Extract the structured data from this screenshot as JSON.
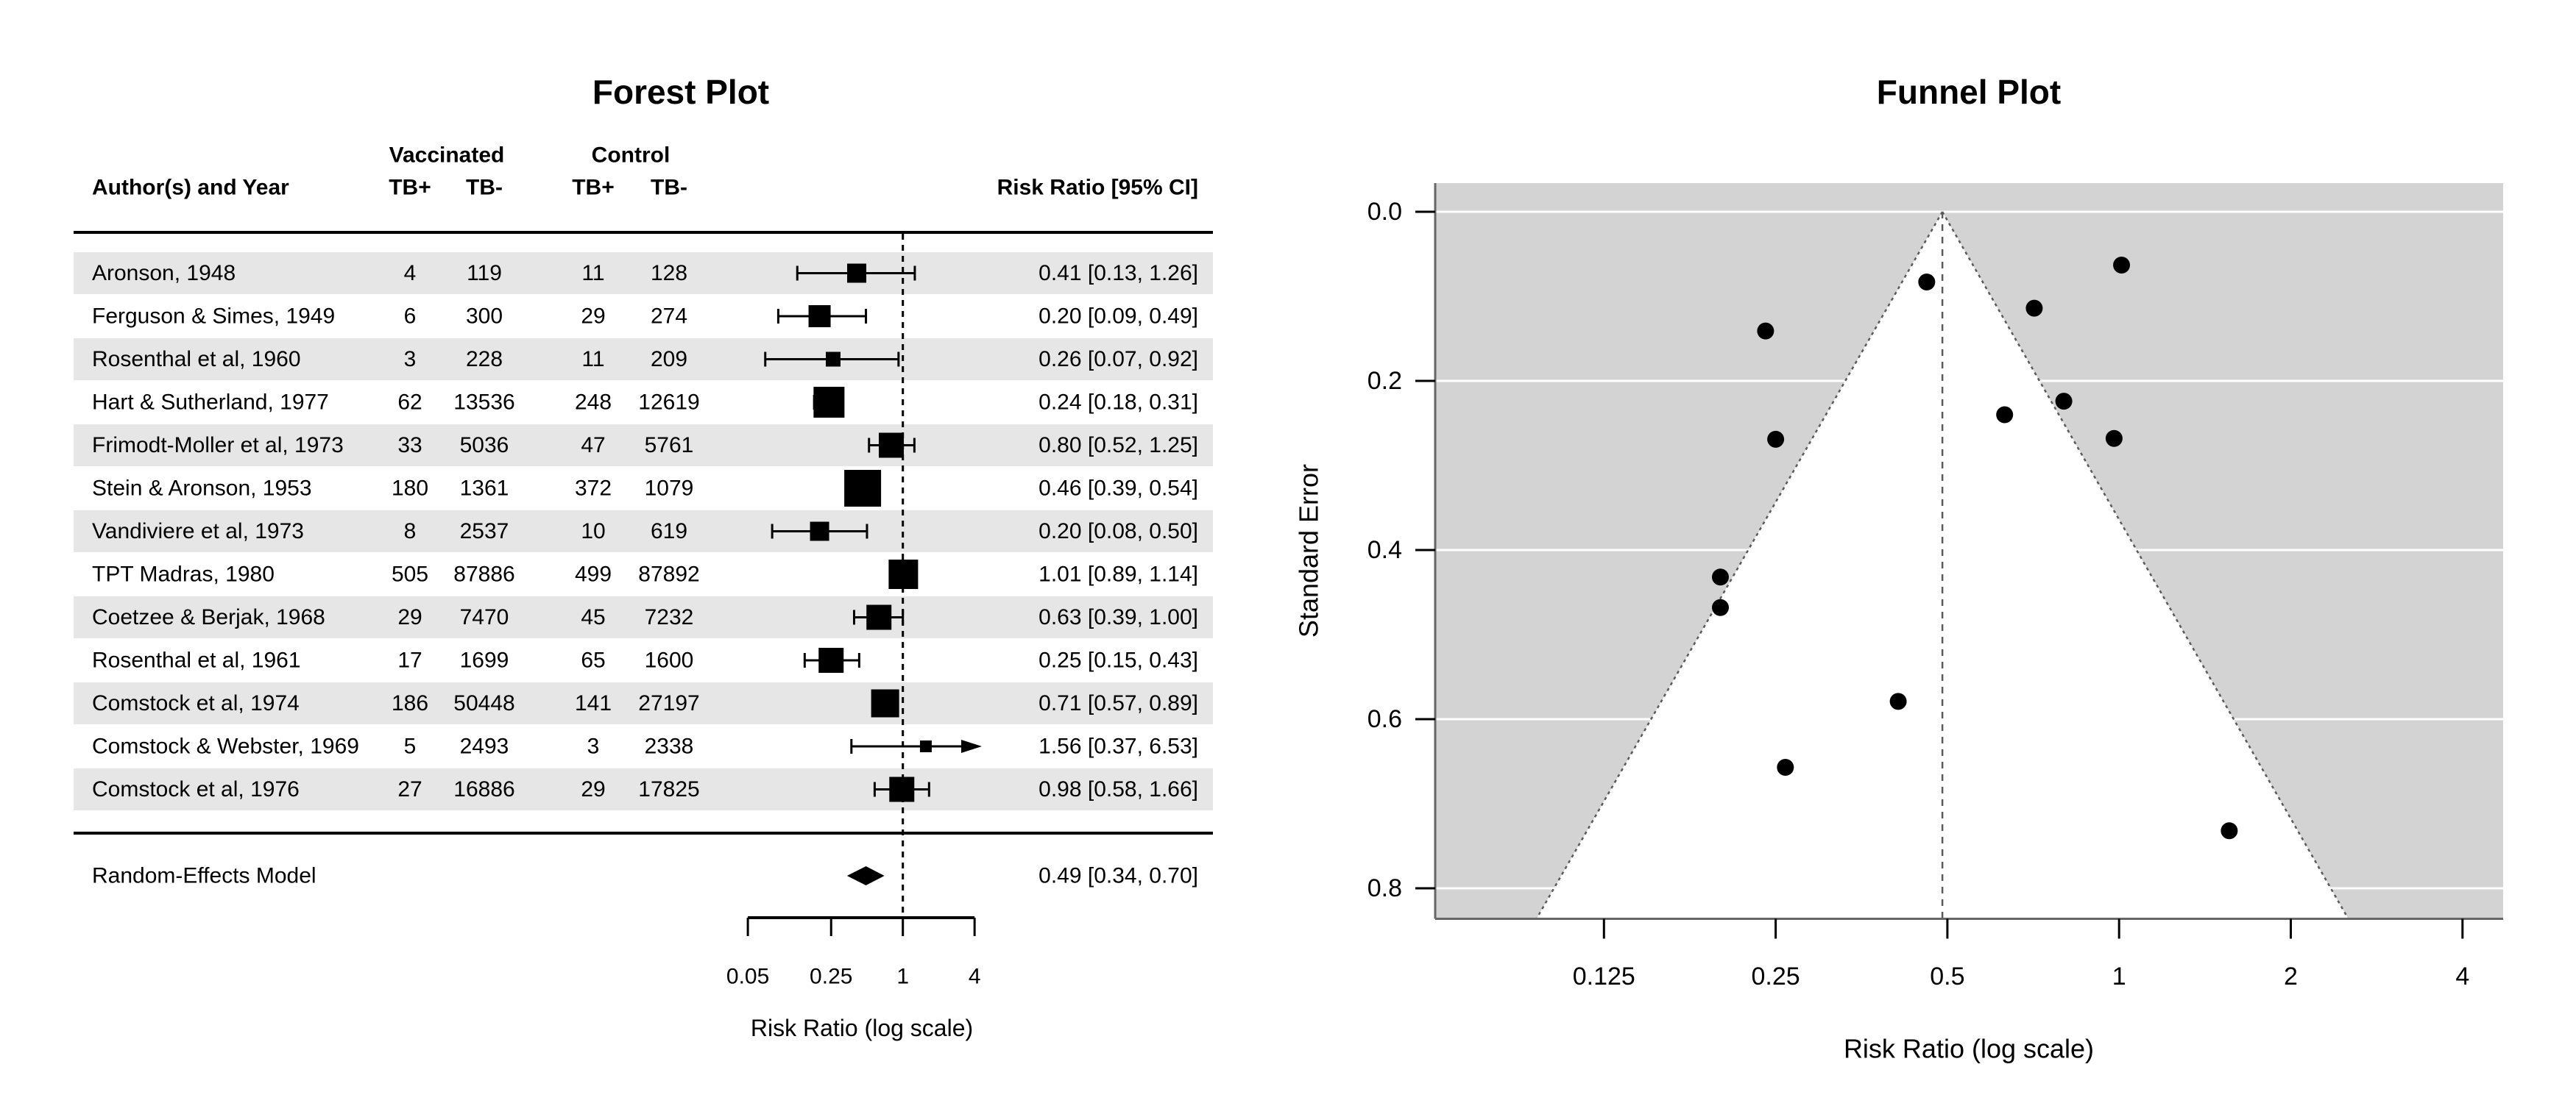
{
  "chart_data": [
    {
      "type": "forest",
      "title": "Forest Plot",
      "header": {
        "author": "Author(s) and Year",
        "group_vaccinated": "Vaccinated",
        "group_control": "Control",
        "tb_plus": "TB+",
        "tb_minus": "TB-",
        "risk_ratio": "Risk Ratio [95% CI]"
      },
      "studies": [
        {
          "author": "Aronson, 1948",
          "vac_tb_pos": "4",
          "vac_tb_neg": "119",
          "ctl_tb_pos": "11",
          "ctl_tb_neg": "128",
          "rr": 0.41,
          "ci_lo": 0.13,
          "ci_hi": 1.26,
          "ci_label": "0.41 [0.13, 1.26]",
          "marker_size": 13,
          "arrow": false
        },
        {
          "author": "Ferguson & Simes, 1949",
          "vac_tb_pos": "6",
          "vac_tb_neg": "300",
          "ctl_tb_pos": "29",
          "ctl_tb_neg": "274",
          "rr": 0.2,
          "ci_lo": 0.09,
          "ci_hi": 0.49,
          "ci_label": "0.20 [0.09, 0.49]",
          "marker_size": 15,
          "arrow": false
        },
        {
          "author": "Rosenthal et al, 1960",
          "vac_tb_pos": "3",
          "vac_tb_neg": "228",
          "ctl_tb_pos": "11",
          "ctl_tb_neg": "209",
          "rr": 0.26,
          "ci_lo": 0.07,
          "ci_hi": 0.92,
          "ci_label": "0.26 [0.07, 0.92]",
          "marker_size": 10,
          "arrow": false
        },
        {
          "author": "Hart & Sutherland, 1977",
          "vac_tb_pos": "62",
          "vac_tb_neg": "13536",
          "ctl_tb_pos": "248",
          "ctl_tb_neg": "12619",
          "rr": 0.24,
          "ci_lo": 0.18,
          "ci_hi": 0.31,
          "ci_label": "0.24 [0.18, 0.31]",
          "marker_size": 21,
          "arrow": false
        },
        {
          "author": "Frimodt-Moller et al, 1973",
          "vac_tb_pos": "33",
          "vac_tb_neg": "5036",
          "ctl_tb_pos": "47",
          "ctl_tb_neg": "5761",
          "rr": 0.8,
          "ci_lo": 0.52,
          "ci_hi": 1.25,
          "ci_label": "0.80 [0.52, 1.25]",
          "marker_size": 17,
          "arrow": false
        },
        {
          "author": "Stein & Aronson, 1953",
          "vac_tb_pos": "180",
          "vac_tb_neg": "1361",
          "ctl_tb_pos": "372",
          "ctl_tb_neg": "1079",
          "rr": 0.46,
          "ci_lo": 0.39,
          "ci_hi": 0.54,
          "ci_label": "0.46 [0.39, 0.54]",
          "marker_size": 25,
          "arrow": false
        },
        {
          "author": "Vandiviere et al, 1973",
          "vac_tb_pos": "8",
          "vac_tb_neg": "2537",
          "ctl_tb_pos": "10",
          "ctl_tb_neg": "619",
          "rr": 0.2,
          "ci_lo": 0.08,
          "ci_hi": 0.5,
          "ci_label": "0.20 [0.08, 0.50]",
          "marker_size": 13,
          "arrow": false
        },
        {
          "author": "TPT Madras, 1980",
          "vac_tb_pos": "505",
          "vac_tb_neg": "87886",
          "ctl_tb_pos": "499",
          "ctl_tb_neg": "87892",
          "rr": 1.01,
          "ci_lo": 0.89,
          "ci_hi": 1.14,
          "ci_label": "1.01 [0.89, 1.14]",
          "marker_size": 20,
          "arrow": false
        },
        {
          "author": "Coetzee & Berjak, 1968",
          "vac_tb_pos": "29",
          "vac_tb_neg": "7470",
          "ctl_tb_pos": "45",
          "ctl_tb_neg": "7232",
          "rr": 0.63,
          "ci_lo": 0.39,
          "ci_hi": 1.0,
          "ci_label": "0.63 [0.39, 1.00]",
          "marker_size": 17,
          "arrow": false
        },
        {
          "author": "Rosenthal et al, 1961",
          "vac_tb_pos": "17",
          "vac_tb_neg": "1699",
          "ctl_tb_pos": "65",
          "ctl_tb_neg": "1600",
          "rr": 0.25,
          "ci_lo": 0.15,
          "ci_hi": 0.43,
          "ci_label": "0.25 [0.15, 0.43]",
          "marker_size": 17,
          "arrow": false
        },
        {
          "author": "Comstock et al, 1974",
          "vac_tb_pos": "186",
          "vac_tb_neg": "50448",
          "ctl_tb_pos": "141",
          "ctl_tb_neg": "27197",
          "rr": 0.71,
          "ci_lo": 0.57,
          "ci_hi": 0.89,
          "ci_label": "0.71 [0.57, 0.89]",
          "marker_size": 19,
          "arrow": false
        },
        {
          "author": "Comstock & Webster, 1969",
          "vac_tb_pos": "5",
          "vac_tb_neg": "2493",
          "ctl_tb_pos": "3",
          "ctl_tb_neg": "2338",
          "rr": 1.56,
          "ci_lo": 0.37,
          "ci_hi": 6.53,
          "ci_label": "1.56 [0.37, 6.53]",
          "marker_size": 8,
          "arrow": true
        },
        {
          "author": "Comstock et al, 1976",
          "vac_tb_pos": "27",
          "vac_tb_neg": "16886",
          "ctl_tb_pos": "29",
          "ctl_tb_neg": "17825",
          "rr": 0.98,
          "ci_lo": 0.58,
          "ci_hi": 1.66,
          "ci_label": "0.98 [0.58, 1.66]",
          "marker_size": 17,
          "arrow": false
        }
      ],
      "summary": {
        "label": "Random-Effects Model",
        "rr": 0.49,
        "ci_lo": 0.34,
        "ci_hi": 0.7,
        "ci_label": "0.49 [0.34, 0.70]"
      },
      "xlabel": "Risk Ratio (log scale)",
      "x_scale": "log",
      "x_ticks": [
        {
          "v": 0.05,
          "label": "0.05"
        },
        {
          "v": 0.25,
          "label": "0.25"
        },
        {
          "v": 1,
          "label": "1"
        },
        {
          "v": 4,
          "label": "4"
        }
      ],
      "refline": 1,
      "colors": {
        "stripe": "#e6e6e6",
        "marker": "#000000",
        "refline": "#000000"
      }
    },
    {
      "type": "scatter",
      "subtype": "funnel",
      "title": "Funnel Plot",
      "xlabel": "Risk Ratio (log scale)",
      "ylabel": "Standard Error",
      "x_scale": "log",
      "x_ticks": [
        {
          "v": 0.125,
          "label": "0.125"
        },
        {
          "v": 0.25,
          "label": "0.25"
        },
        {
          "v": 0.5,
          "label": "0.5"
        },
        {
          "v": 1,
          "label": "1"
        },
        {
          "v": 2,
          "label": "2"
        },
        {
          "v": 4,
          "label": "4"
        }
      ],
      "y_ticks": [
        {
          "v": 0.0,
          "label": "0.0"
        },
        {
          "v": 0.2,
          "label": "0.2"
        },
        {
          "v": 0.4,
          "label": "0.4"
        },
        {
          "v": 0.6,
          "label": "0.6"
        },
        {
          "v": 0.8,
          "label": "0.8"
        }
      ],
      "ylim": [
        0,
        0.836
      ],
      "center": 0.49,
      "ci_z": 1.96,
      "points": [
        {
          "rr": 0.41,
          "se": 0.579
        },
        {
          "rr": 0.2,
          "se": 0.432
        },
        {
          "rr": 0.26,
          "se": 0.657
        },
        {
          "rr": 0.24,
          "se": 0.141
        },
        {
          "rr": 0.8,
          "se": 0.224
        },
        {
          "rr": 0.46,
          "se": 0.083
        },
        {
          "rr": 0.2,
          "se": 0.468
        },
        {
          "rr": 1.01,
          "se": 0.063
        },
        {
          "rr": 0.63,
          "se": 0.24
        },
        {
          "rr": 0.25,
          "se": 0.269
        },
        {
          "rr": 0.71,
          "se": 0.114
        },
        {
          "rr": 1.56,
          "se": 0.732
        },
        {
          "rr": 0.98,
          "se": 0.268
        }
      ],
      "colors": {
        "background": "#d3d3d3",
        "funnel_region": "#ffffff",
        "gridline": "#ffffff",
        "edge_line": "#5a5a5a",
        "axis_line": "#666666",
        "point": "#000000"
      }
    }
  ]
}
